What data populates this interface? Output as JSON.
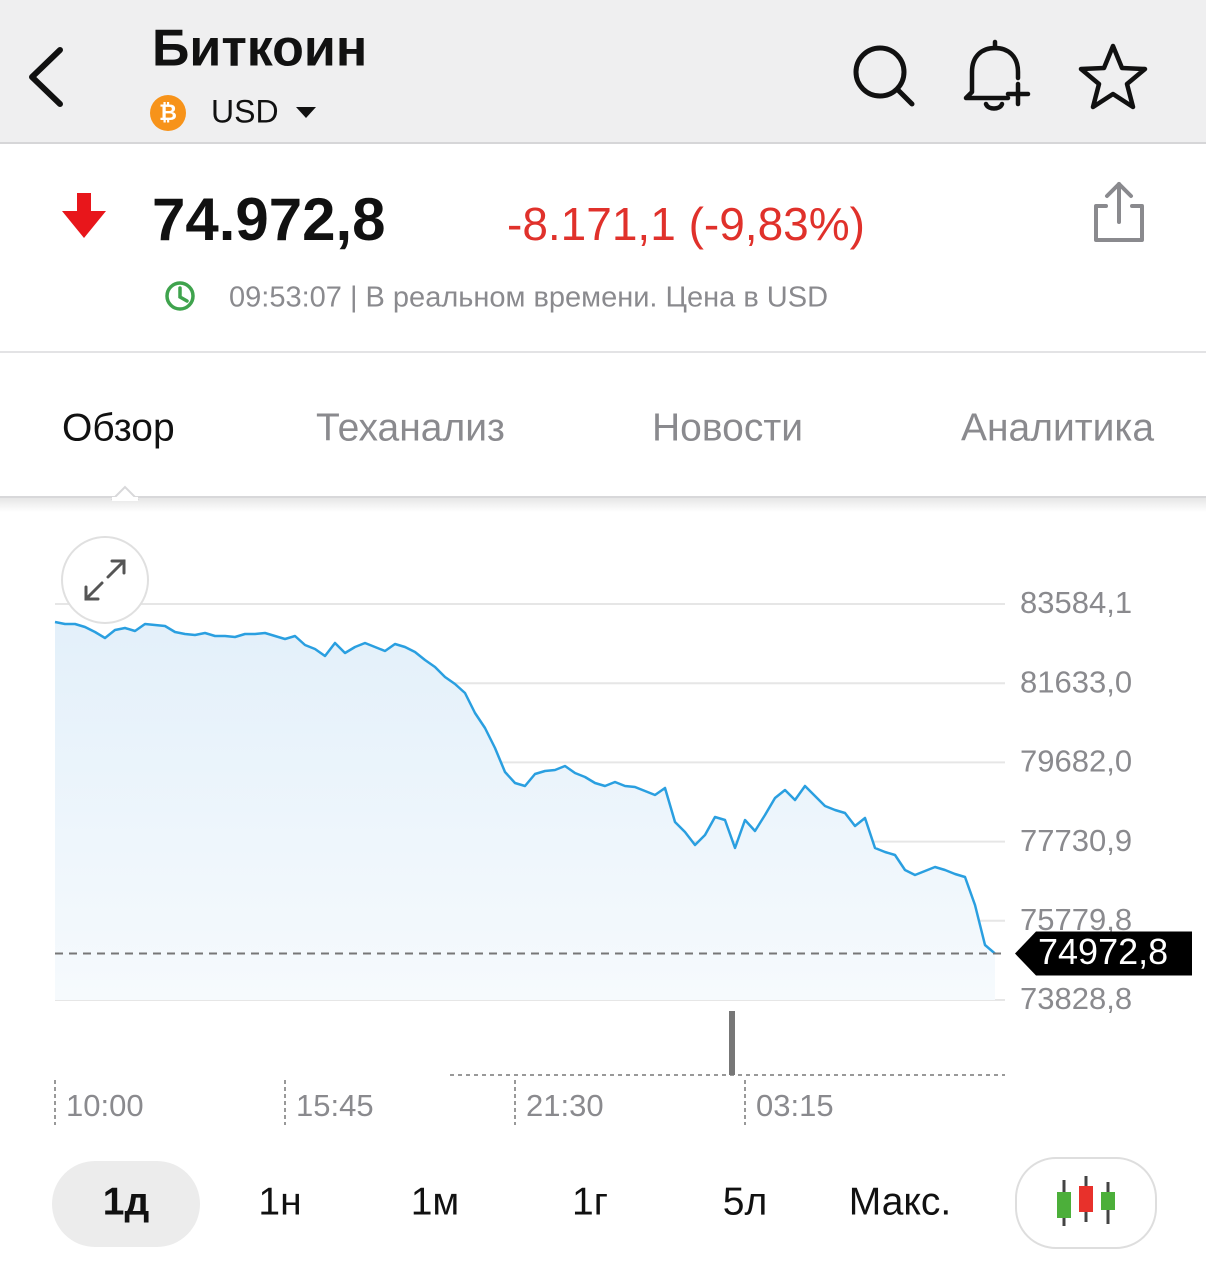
{
  "header": {
    "title": "Биткоин",
    "currency": "USD"
  },
  "quote": {
    "price": "74.972,8",
    "change": "-8.171,1 (-9,83%)",
    "status": "09:53:07 | В реальном времени. Цена в USD"
  },
  "tabs": [
    "Обзор",
    "Теханализ",
    "Новости",
    "Аналитика"
  ],
  "chart_data": {
    "type": "line",
    "categories": [
      "10:00",
      null,
      null,
      null,
      null,
      null,
      null,
      null,
      null,
      null,
      null,
      null,
      null,
      null,
      null,
      null,
      null,
      null,
      null,
      null,
      null,
      null,
      null,
      "15:45",
      null,
      null,
      null,
      null,
      null,
      null,
      null,
      null,
      null,
      null,
      null,
      null,
      null,
      null,
      null,
      null,
      null,
      null,
      null,
      null,
      null,
      null,
      "21:30",
      null,
      null,
      null,
      null,
      null,
      null,
      null,
      null,
      null,
      null,
      null,
      null,
      null,
      null,
      null,
      null,
      null,
      null,
      null,
      null,
      null,
      null,
      "03:15",
      null,
      null,
      null,
      null,
      null,
      null,
      null,
      null,
      null,
      null,
      null,
      null,
      null,
      null,
      null,
      null,
      null,
      null,
      null,
      null,
      null,
      null,
      null,
      null,
      null
    ],
    "values": [
      83141,
      83091,
      83091,
      83017,
      82894,
      82746,
      82944,
      82993,
      82919,
      83091,
      83067,
      83042,
      82894,
      82845,
      82820,
      82870,
      82796,
      82796,
      82771,
      82845,
      82845,
      82870,
      82796,
      82722,
      82796,
      82574,
      82475,
      82303,
      82623,
      82377,
      82525,
      82623,
      82525,
      82426,
      82599,
      82525,
      82402,
      82204,
      82032,
      81786,
      81613,
      81391,
      80899,
      80529,
      80037,
      79445,
      79174,
      79100,
      79396,
      79470,
      79495,
      79593,
      79421,
      79322,
      79174,
      79100,
      79199,
      79100,
      79076,
      78977,
      78879,
      79051,
      78214,
      77967,
      77647,
      77893,
      78337,
      78263,
      77573,
      78263,
      77992,
      78386,
      78805,
      79002,
      78756,
      79100,
      78854,
      78608,
      78509,
      78435,
      78115,
      78312,
      77573,
      77474,
      77401,
      77031,
      76908,
      77007,
      77105,
      77031,
      76933,
      76859,
      76169,
      75184,
      74972.8
    ],
    "color": "#2a9fe0",
    "ylim": [
      73828.8,
      83584.1
    ],
    "yticks": [
      {
        "value": 73828.8,
        "label": "73828,8"
      },
      {
        "value": 75779.8,
        "label": "75779,8"
      },
      {
        "value": 77730.9,
        "label": "77730,9"
      },
      {
        "value": 79682.0,
        "label": "79682,0"
      },
      {
        "value": 81633.0,
        "label": "81633,0"
      },
      {
        "value": 83584.1,
        "label": "83584,1"
      }
    ],
    "current": {
      "value": 74972.8,
      "label": "74972,8"
    },
    "grid": true
  },
  "ranges": [
    "1д",
    "1н",
    "1м",
    "1г",
    "5л",
    "Макс."
  ]
}
